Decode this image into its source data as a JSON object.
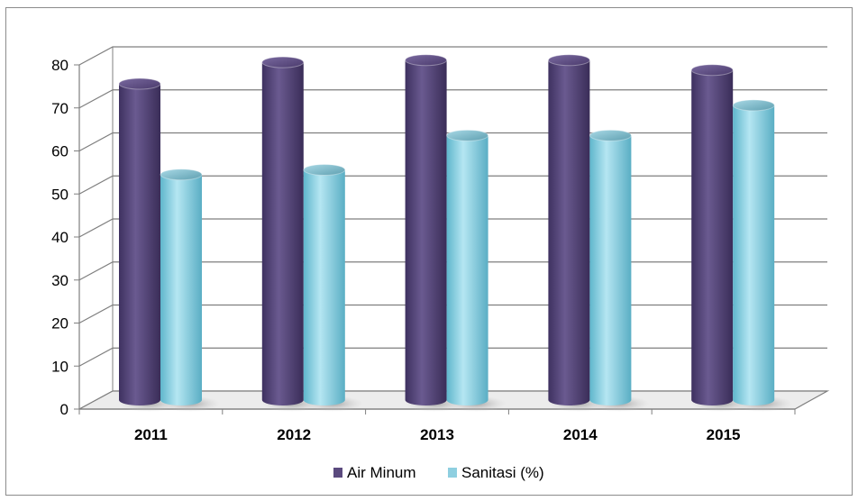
{
  "chart_data": {
    "type": "bar",
    "categories": [
      "2011",
      "2012",
      "2013",
      "2014",
      "2015"
    ],
    "series": [
      {
        "name": "Air Minum",
        "values": [
          73.5,
          78.5,
          79,
          79,
          76.7
        ],
        "color": "#5b4a7e"
      },
      {
        "name": "Sanitasi (%)",
        "values": [
          52.4,
          53.5,
          61.5,
          61.5,
          68.5
        ],
        "color": "#8ecfe0"
      }
    ],
    "y_ticks": [
      "0",
      "10",
      "20",
      "30",
      "40",
      "50",
      "60",
      "70",
      "80"
    ],
    "ylim": [
      0,
      80
    ],
    "title": "",
    "xlabel": "",
    "ylabel": "",
    "grid": true,
    "legend_position": "bottom",
    "style": "3d-cylinder"
  }
}
